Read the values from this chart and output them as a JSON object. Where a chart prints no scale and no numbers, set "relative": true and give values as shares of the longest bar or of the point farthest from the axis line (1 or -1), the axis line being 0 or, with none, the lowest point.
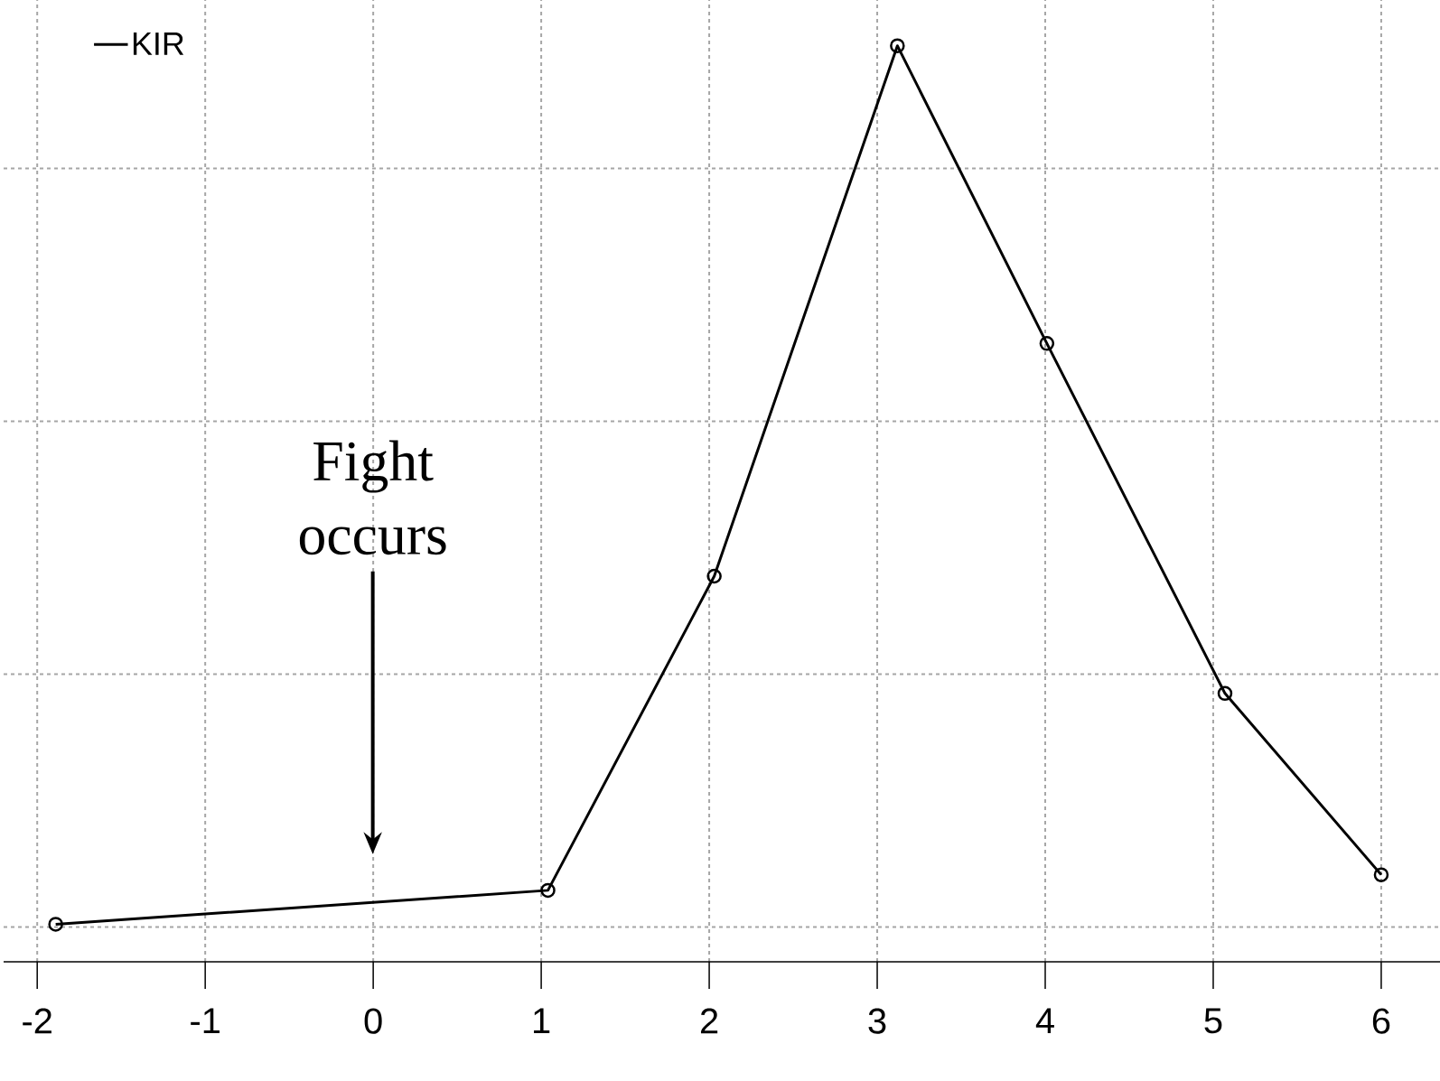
{
  "chart_data": {
    "type": "line",
    "relative": true,
    "x": [
      -1.89,
      1.04,
      2.03,
      3.12,
      4.01,
      5.07,
      6.0
    ],
    "series": [
      {
        "name": "KIR",
        "color": "#000000",
        "values": [
          0.041,
          0.078,
          0.421,
          1.0,
          0.675,
          0.293,
          0.095
        ]
      }
    ],
    "xlim": [
      -2.2,
      6.35
    ],
    "xticks": [
      -2,
      -1,
      0,
      1,
      2,
      3,
      4,
      5,
      6
    ],
    "annotations": [
      "Fight occurs"
    ],
    "grid": true,
    "legend": "top left",
    "marker": "circle",
    "line_style": "solid"
  }
}
